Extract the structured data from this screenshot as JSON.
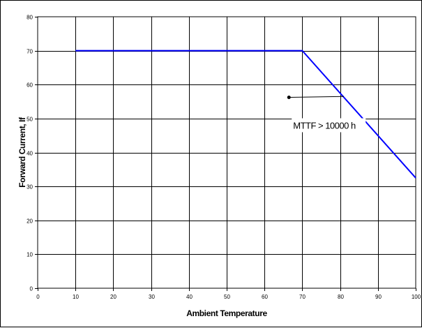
{
  "chart_data": {
    "type": "line",
    "title": "",
    "xlabel": "Ambient Temperature",
    "ylabel": "Forward Current, If",
    "xlim": [
      0,
      100
    ],
    "ylim": [
      0,
      80
    ],
    "xticks": [
      0,
      10,
      20,
      30,
      40,
      50,
      60,
      70,
      80,
      90,
      100
    ],
    "yticks": [
      0,
      10,
      20,
      30,
      40,
      50,
      60,
      70,
      80
    ],
    "grid": true,
    "series": [
      {
        "color": "#0000ff",
        "x": [
          10,
          70,
          100
        ],
        "y": [
          70,
          70,
          32.5
        ]
      }
    ],
    "annotations": [
      {
        "text": "MTTF > 10000 h",
        "point_x": 81,
        "point_y": 56.5,
        "text_x": 72,
        "text_y": 47
      }
    ],
    "colors": {
      "series": "#0000ff",
      "grid": "#000000",
      "background": "#ffffff"
    }
  }
}
